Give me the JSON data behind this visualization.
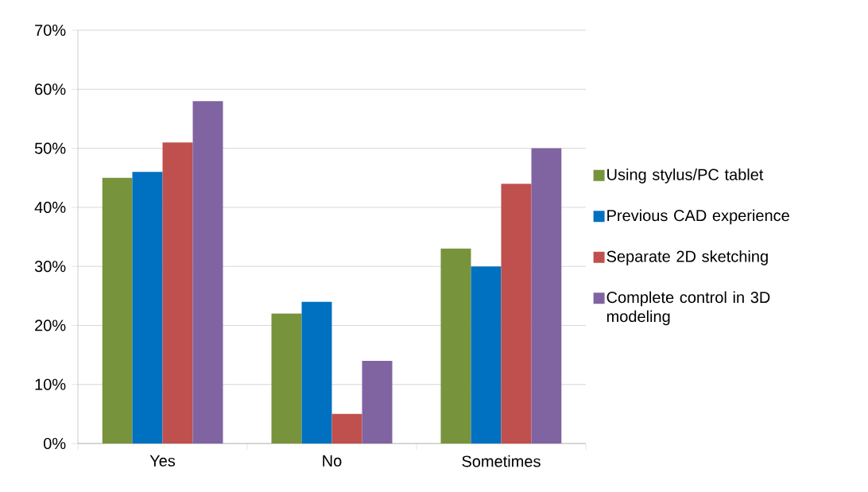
{
  "chart_data": {
    "type": "bar",
    "categories": [
      "Yes",
      "No",
      "Sometimes"
    ],
    "series": [
      {
        "name": "Using stylus/PC tablet",
        "color": "#77933c",
        "values": [
          45,
          22,
          33
        ]
      },
      {
        "name": "Previous CAD experience",
        "color": "#0070c0",
        "values": [
          46,
          24,
          30
        ]
      },
      {
        "name": "Separate 2D sketching",
        "color": "#c0504d",
        "values": [
          51,
          5,
          44
        ]
      },
      {
        "name": "Complete control in 3D modeling",
        "color": "#8064a2",
        "values": [
          58,
          14,
          50
        ]
      }
    ],
    "ylim": [
      0,
      70
    ],
    "yticks": [
      {
        "value": 0,
        "label": "0%"
      },
      {
        "value": 10,
        "label": "10%"
      },
      {
        "value": 20,
        "label": "20%"
      },
      {
        "value": 30,
        "label": "30%"
      },
      {
        "value": 40,
        "label": "40%"
      },
      {
        "value": 50,
        "label": "50%"
      },
      {
        "value": 60,
        "label": "60%"
      },
      {
        "value": 70,
        "label": "70%"
      }
    ],
    "grid": "y",
    "legend": "right"
  }
}
